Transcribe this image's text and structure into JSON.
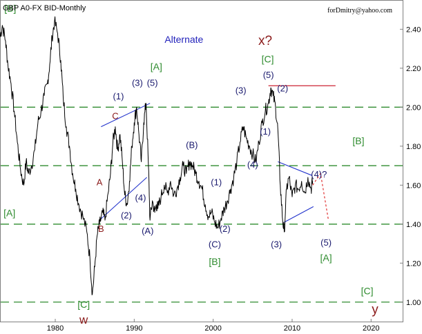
{
  "chart_data": {
    "type": "line",
    "title": "GBP A0-FX BID-Monthly",
    "credit": "forDmitry@yahoo.com",
    "subtitle": "Alternate",
    "xlabel": "",
    "ylabel": "",
    "xlim": [
      1973,
      2024
    ],
    "ylim": [
      0.9,
      2.55
    ],
    "x_ticks": [
      1980,
      1990,
      2000,
      2010,
      2020
    ],
    "y_ticks": [
      "1.00",
      "1.20",
      "1.40",
      "1.60",
      "1.80",
      "2.00",
      "2.20",
      "2.40"
    ],
    "grid": false,
    "legend": "none",
    "colors": {
      "price": "#000000",
      "dashed_level": "#2e8b2e",
      "blue_label": "#1a1a6e",
      "green_label": "#2e8b2e",
      "red_label": "#8b1a1a",
      "channel": "#2233cc",
      "top_line": "#cc2233",
      "projection": "#e03030",
      "alternate": "#2222bb"
    },
    "horizontal_levels": [
      1.0,
      1.4,
      1.7,
      2.0
    ],
    "top_line": {
      "x": [
        2007,
        2015.5
      ],
      "y": 2.11
    },
    "channels": [
      {
        "x": [
          1985.8,
          1992.0
        ],
        "y": [
          1.9,
          2.02
        ]
      },
      {
        "x": [
          1985.6,
          1991.6
        ],
        "y": [
          1.42,
          1.64
        ]
      },
      {
        "x": [
          2008.2,
          2012.5
        ],
        "y": [
          1.72,
          1.65
        ]
      },
      {
        "x": [
          2009.0,
          2012.7
        ],
        "y": [
          1.41,
          1.49
        ]
      }
    ],
    "projection": {
      "x": [
        2012.6,
        2013.6,
        2014.6
      ],
      "y": [
        1.6,
        1.66,
        1.42
      ]
    },
    "series": [
      {
        "x": [
          1973.0,
          1973.3,
          1973.7,
          1974.0,
          1974.4,
          1974.8,
          1975.2,
          1975.6,
          1976.0,
          1976.3,
          1976.6,
          1977.0,
          1977.4,
          1977.8,
          1978.2,
          1978.6,
          1979.0,
          1979.3,
          1979.6,
          1979.9,
          1980.3,
          1980.7,
          1981.0,
          1981.4,
          1981.8,
          1982.2,
          1982.6,
          1983.0,
          1983.5,
          1984.0,
          1984.4,
          1984.7,
          1985.0,
          1985.3,
          1985.6,
          1986.0,
          1986.3,
          1986.7,
          1987.0,
          1987.3,
          1987.6,
          1987.9,
          1988.2,
          1988.5,
          1988.8,
          1989.1,
          1989.4,
          1989.7,
          1990.0,
          1990.3,
          1990.6,
          1990.9,
          1991.2,
          1991.5,
          1991.8,
          1992.0,
          1992.3,
          1992.6,
          1992.8,
          1993.0,
          1993.4,
          1993.8,
          1994.2,
          1994.6,
          1995.0,
          1995.4,
          1995.8,
          1996.2,
          1996.6,
          1997.0,
          1997.4,
          1997.8,
          1998.2,
          1998.6,
          1999.0,
          1999.4,
          1999.8,
          2000.2,
          2000.6,
          2001.0,
          2001.4,
          2001.8,
          2002.2,
          2002.6,
          2003.0,
          2003.4,
          2003.8,
          2004.2,
          2004.6,
          2005.0,
          2005.4,
          2005.8,
          2006.2,
          2006.6,
          2007.0,
          2007.3,
          2007.6,
          2007.9,
          2008.2,
          2008.5,
          2008.8,
          2009.0,
          2009.3,
          2009.6,
          2010.0,
          2010.4,
          2010.8,
          2011.2,
          2011.6,
          2012.0,
          2012.4,
          2012.6
        ],
        "y": [
          2.36,
          2.42,
          2.34,
          2.22,
          2.12,
          1.98,
          1.82,
          1.68,
          1.6,
          1.72,
          1.66,
          1.7,
          1.78,
          1.92,
          1.98,
          2.06,
          2.12,
          2.22,
          2.36,
          2.44,
          2.38,
          2.24,
          2.05,
          1.9,
          1.8,
          1.66,
          1.58,
          1.5,
          1.44,
          1.36,
          1.22,
          1.04,
          1.18,
          1.34,
          1.4,
          1.46,
          1.42,
          1.56,
          1.66,
          1.82,
          1.9,
          1.78,
          1.86,
          1.72,
          1.55,
          1.5,
          1.62,
          1.8,
          1.92,
          2.0,
          1.86,
          1.72,
          1.92,
          2.02,
          1.7,
          1.42,
          1.52,
          1.46,
          1.5,
          1.48,
          1.54,
          1.6,
          1.56,
          1.62,
          1.55,
          1.58,
          1.64,
          1.7,
          1.66,
          1.72,
          1.7,
          1.66,
          1.62,
          1.58,
          1.5,
          1.44,
          1.46,
          1.41,
          1.38,
          1.43,
          1.48,
          1.52,
          1.58,
          1.64,
          1.72,
          1.82,
          1.9,
          1.84,
          1.8,
          1.76,
          1.72,
          1.82,
          1.92,
          1.98,
          2.02,
          2.1,
          2.06,
          2.0,
          1.88,
          1.6,
          1.42,
          1.36,
          1.58,
          1.64,
          1.54,
          1.6,
          1.58,
          1.62,
          1.56,
          1.64,
          1.58,
          1.62
        ],
        "smooth": true
      }
    ],
    "annotations": [
      {
        "text": "[B]",
        "x": 1974.3,
        "y": 2.49,
        "color": "green",
        "size": 14
      },
      {
        "text": "[A]",
        "x": 1974.2,
        "y": 1.44,
        "color": "green",
        "size": 14
      },
      {
        "text": "[C]",
        "x": 1983.6,
        "y": 0.97,
        "color": "green",
        "size": 14
      },
      {
        "text": "w",
        "x": 1983.6,
        "y": 0.89,
        "color": "red",
        "size": 17
      },
      {
        "text": "A",
        "x": 1985.6,
        "y": 1.6,
        "color": "red",
        "size": 13
      },
      {
        "text": "B",
        "x": 1985.8,
        "y": 1.36,
        "color": "red",
        "size": 13
      },
      {
        "text": "C",
        "x": 1987.6,
        "y": 1.94,
        "color": "red",
        "size": 13
      },
      {
        "text": "(1)",
        "x": 1988.0,
        "y": 2.04,
        "color": "blue",
        "size": 13
      },
      {
        "text": "(2)",
        "x": 1989.0,
        "y": 1.43,
        "color": "blue",
        "size": 13
      },
      {
        "text": "(3)",
        "x": 1990.4,
        "y": 2.11,
        "color": "blue",
        "size": 13
      },
      {
        "text": "(4)",
        "x": 1990.8,
        "y": 1.52,
        "color": "blue",
        "size": 13
      },
      {
        "text": "(5)",
        "x": 1992.3,
        "y": 2.11,
        "color": "blue",
        "size": 13
      },
      {
        "text": "[A]",
        "x": 1992.8,
        "y": 2.19,
        "color": "green",
        "size": 14
      },
      {
        "text": "(A)",
        "x": 1991.7,
        "y": 1.35,
        "color": "blue",
        "size": 13
      },
      {
        "text": "(B)",
        "x": 1997.3,
        "y": 1.79,
        "color": "blue",
        "size": 13
      },
      {
        "text": "(1)",
        "x": 2000.4,
        "y": 1.6,
        "color": "blue",
        "size": 13
      },
      {
        "text": "(2)",
        "x": 2001.5,
        "y": 1.36,
        "color": "blue",
        "size": 13
      },
      {
        "text": "(C)",
        "x": 2000.2,
        "y": 1.28,
        "color": "blue",
        "size": 13
      },
      {
        "text": "[B]",
        "x": 2000.2,
        "y": 1.19,
        "color": "green",
        "size": 14
      },
      {
        "text": "Alternate",
        "x": 1996.3,
        "y": 2.33,
        "color": "alternate",
        "size": 14
      },
      {
        "text": "(3)",
        "x": 2003.5,
        "y": 2.07,
        "color": "blue",
        "size": 13
      },
      {
        "text": "(4)",
        "x": 2005.0,
        "y": 1.69,
        "color": "blue",
        "size": 13
      },
      {
        "text": "(1)",
        "x": 2006.6,
        "y": 1.86,
        "color": "blue",
        "size": 13
      },
      {
        "text": "(2)",
        "x": 2008.8,
        "y": 2.08,
        "color": "blue",
        "size": 13
      },
      {
        "text": "(5)",
        "x": 2007.0,
        "y": 2.15,
        "color": "blue",
        "size": 13
      },
      {
        "text": "[C]",
        "x": 2006.9,
        "y": 2.23,
        "color": "green",
        "size": 14
      },
      {
        "text": "x?",
        "x": 2006.6,
        "y": 2.32,
        "color": "red",
        "size": 19
      },
      {
        "text": "(3)",
        "x": 2008.0,
        "y": 1.28,
        "color": "blue",
        "size": 13
      },
      {
        "text": "(4)?",
        "x": 2013.4,
        "y": 1.64,
        "color": "blue",
        "size": 13
      },
      {
        "text": "(5)",
        "x": 2014.3,
        "y": 1.29,
        "color": "blue",
        "size": 13
      },
      {
        "text": "[A]",
        "x": 2014.3,
        "y": 1.21,
        "color": "green",
        "size": 14
      },
      {
        "text": "[B]",
        "x": 2018.4,
        "y": 1.81,
        "color": "green",
        "size": 14
      },
      {
        "text": "[C]",
        "x": 2019.5,
        "y": 1.04,
        "color": "green",
        "size": 14
      },
      {
        "text": "y",
        "x": 2020.5,
        "y": 0.94,
        "color": "red",
        "size": 19
      }
    ]
  }
}
